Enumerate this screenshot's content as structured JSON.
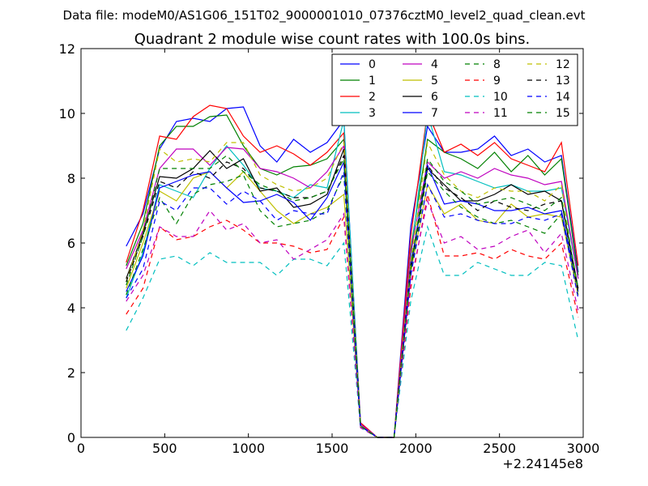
{
  "chart_data": {
    "type": "line",
    "suptitle": "Data file: modeM0/AS1G06_151T02_9000001010_07376cztM0_level2_quad_clean.evt",
    "title": "Quadrant 2 module wise count rates with 100.0s bins.",
    "xlabel": "",
    "ylabel": "",
    "x_offset_label": "+2.24145e8",
    "xlim": [
      0,
      3000
    ],
    "ylim": [
      0,
      12
    ],
    "xticks": [
      0,
      500,
      1000,
      1500,
      2000,
      2500,
      3000
    ],
    "yticks": [
      0,
      2,
      4,
      6,
      8,
      10,
      12
    ],
    "grid": false,
    "legend": {
      "position": "top-right",
      "columns": 4
    },
    "x": [
      270,
      370,
      470,
      570,
      670,
      770,
      870,
      970,
      1070,
      1170,
      1270,
      1370,
      1470,
      1570,
      1670,
      1770,
      1870,
      1970,
      2070,
      2170,
      2270,
      2370,
      2470,
      2570,
      2670,
      2770,
      2870,
      2970
    ],
    "series": [
      {
        "name": "0",
        "color": "#0000ff",
        "dash": "solid",
        "values": [
          5.9,
          6.9,
          8.9,
          9.75,
          9.85,
          9.75,
          10.15,
          10.2,
          9.0,
          8.5,
          9.2,
          8.8,
          9.1,
          9.8,
          0.45,
          0.0,
          0.0,
          6.5,
          9.6,
          8.8,
          8.8,
          8.9,
          9.3,
          8.7,
          8.9,
          8.5,
          8.7,
          5.1
        ]
      },
      {
        "name": "1",
        "color": "#008000",
        "dash": "solid",
        "values": [
          5.3,
          6.6,
          9.0,
          9.6,
          9.6,
          9.9,
          9.95,
          9.0,
          8.3,
          8.1,
          8.35,
          8.4,
          8.6,
          9.2,
          0.4,
          0.0,
          0.0,
          5.8,
          9.2,
          8.8,
          8.6,
          8.3,
          8.8,
          8.2,
          8.7,
          8.1,
          8.6,
          5.0
        ]
      },
      {
        "name": "2",
        "color": "#ff0000",
        "dash": "solid",
        "values": [
          5.4,
          7.0,
          9.3,
          9.2,
          9.9,
          10.25,
          10.15,
          9.3,
          8.8,
          9.0,
          8.75,
          8.4,
          8.8,
          9.4,
          0.45,
          0.0,
          0.0,
          6.2,
          10.05,
          8.8,
          9.05,
          8.7,
          9.1,
          8.6,
          8.4,
          8.2,
          9.1,
          5.3
        ]
      },
      {
        "name": "3",
        "color": "#00bfbf",
        "dash": "solid",
        "values": [
          4.3,
          5.7,
          7.8,
          7.6,
          7.4,
          8.3,
          9.0,
          8.4,
          7.7,
          7.6,
          7.4,
          7.8,
          7.7,
          9.8,
          0.4,
          0.0,
          0.0,
          5.5,
          10.0,
          8.2,
          8.1,
          7.9,
          7.7,
          7.8,
          7.6,
          7.6,
          7.7,
          4.9
        ]
      },
      {
        "name": "4",
        "color": "#bf00bf",
        "dash": "solid",
        "values": [
          5.2,
          6.4,
          8.3,
          8.9,
          8.9,
          8.4,
          8.95,
          8.9,
          8.3,
          8.2,
          8.0,
          7.7,
          8.2,
          9.0,
          0.4,
          0.0,
          0.0,
          5.7,
          8.5,
          8.0,
          8.2,
          8.0,
          8.3,
          8.1,
          8.0,
          7.8,
          7.9,
          4.9
        ]
      },
      {
        "name": "5",
        "color": "#bfbf00",
        "dash": "solid",
        "values": [
          4.6,
          6.0,
          7.6,
          7.3,
          8.0,
          8.2,
          7.7,
          8.2,
          7.6,
          7.0,
          6.6,
          6.9,
          7.1,
          7.5,
          0.35,
          0.0,
          0.0,
          5.1,
          7.8,
          6.9,
          7.2,
          6.7,
          6.6,
          7.2,
          6.8,
          6.9,
          6.8,
          4.4
        ]
      },
      {
        "name": "6",
        "color": "#000000",
        "dash": "solid",
        "values": [
          4.9,
          6.3,
          8.05,
          8.0,
          8.3,
          8.85,
          8.3,
          8.6,
          7.6,
          7.7,
          7.1,
          7.2,
          7.5,
          8.9,
          0.35,
          0.0,
          0.0,
          5.3,
          8.3,
          7.8,
          7.3,
          7.3,
          7.5,
          7.8,
          7.5,
          7.6,
          7.3,
          4.6
        ]
      },
      {
        "name": "7",
        "color": "#0000ff",
        "dash": "solid",
        "values": [
          4.5,
          5.6,
          7.7,
          7.9,
          8.1,
          8.2,
          7.7,
          7.25,
          7.3,
          7.5,
          7.25,
          6.7,
          7.4,
          8.5,
          0.35,
          0.0,
          0.0,
          5.2,
          8.4,
          7.2,
          7.3,
          7.2,
          7.0,
          7.0,
          7.1,
          6.9,
          7.0,
          4.5
        ]
      },
      {
        "name": "8",
        "color": "#008000",
        "dash": "dashed",
        "values": [
          4.4,
          5.8,
          7.4,
          6.6,
          7.5,
          7.8,
          7.9,
          8.1,
          7.0,
          6.5,
          6.6,
          6.7,
          7.0,
          8.1,
          0.35,
          0.0,
          0.0,
          5.0,
          8.2,
          7.6,
          7.1,
          6.8,
          6.6,
          6.7,
          6.5,
          6.3,
          6.9,
          4.4
        ]
      },
      {
        "name": "9",
        "color": "#ff0000",
        "dash": "dashed",
        "values": [
          3.8,
          4.6,
          6.5,
          6.1,
          6.2,
          6.5,
          6.7,
          6.4,
          6.0,
          6.0,
          5.9,
          5.7,
          5.8,
          6.8,
          0.3,
          0.0,
          0.0,
          4.6,
          7.5,
          5.6,
          5.6,
          5.7,
          5.5,
          5.8,
          5.6,
          5.5,
          6.0,
          3.7
        ]
      },
      {
        "name": "10",
        "color": "#00bfbf",
        "dash": "dashed",
        "values": [
          3.3,
          4.3,
          5.5,
          5.6,
          5.3,
          5.7,
          5.4,
          5.4,
          5.4,
          5.0,
          5.5,
          5.5,
          5.3,
          6.0,
          0.3,
          0.0,
          0.0,
          4.2,
          6.5,
          5.0,
          5.0,
          5.4,
          5.2,
          5.0,
          5.0,
          5.4,
          5.3,
          3.0
        ]
      },
      {
        "name": "11",
        "color": "#bf00bf",
        "dash": "dashed",
        "values": [
          4.2,
          5.0,
          6.5,
          6.2,
          6.2,
          7.0,
          6.4,
          6.6,
          6.0,
          6.1,
          5.5,
          5.8,
          6.1,
          6.9,
          0.3,
          0.0,
          0.0,
          4.8,
          7.3,
          6.0,
          6.2,
          5.8,
          5.9,
          6.2,
          6.4,
          5.7,
          6.3,
          3.9
        ]
      },
      {
        "name": "12",
        "color": "#bfbf00",
        "dash": "dashed",
        "values": [
          4.8,
          6.4,
          8.9,
          8.5,
          8.6,
          8.5,
          9.1,
          9.1,
          8.1,
          7.8,
          7.6,
          7.7,
          8.0,
          9.1,
          0.35,
          0.0,
          0.0,
          5.4,
          9.1,
          8.1,
          7.6,
          7.4,
          7.7,
          7.6,
          7.6,
          7.3,
          7.8,
          4.3
        ]
      },
      {
        "name": "13",
        "color": "#000000",
        "dash": "dashed",
        "values": [
          4.8,
          6.2,
          7.9,
          7.7,
          8.2,
          8.0,
          8.5,
          8.3,
          7.7,
          7.6,
          7.4,
          7.4,
          7.6,
          8.7,
          0.35,
          0.0,
          0.0,
          5.2,
          8.4,
          7.7,
          7.4,
          7.0,
          7.3,
          7.1,
          7.0,
          7.2,
          7.3,
          4.5
        ]
      },
      {
        "name": "14",
        "color": "#0000ff",
        "dash": "dashed",
        "values": [
          4.3,
          5.2,
          7.3,
          7.0,
          7.7,
          7.7,
          7.2,
          7.6,
          7.3,
          6.7,
          7.0,
          6.9,
          6.9,
          8.2,
          0.35,
          0.0,
          0.0,
          5.0,
          7.8,
          6.8,
          6.9,
          6.7,
          6.6,
          6.6,
          6.8,
          6.7,
          6.9,
          4.3
        ]
      },
      {
        "name": "15",
        "color": "#008000",
        "dash": "dashed",
        "values": [
          4.7,
          6.2,
          8.3,
          8.3,
          8.3,
          8.3,
          8.7,
          8.2,
          7.8,
          7.6,
          7.3,
          7.4,
          7.6,
          8.6,
          0.35,
          0.0,
          0.0,
          5.2,
          8.6,
          7.9,
          7.6,
          7.2,
          7.3,
          7.4,
          7.2,
          7.0,
          7.4,
          4.6
        ]
      }
    ]
  }
}
